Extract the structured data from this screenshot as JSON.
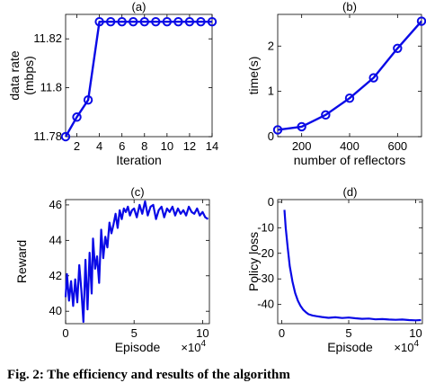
{
  "caption": "Fig. 2: The efficiency and results of the algorithm",
  "colors": {
    "line": "#0a0ae6",
    "axis": "#000000",
    "grid": "#d0d0d0"
  },
  "chart_data": [
    {
      "type": "line",
      "title": "(a)",
      "xlabel": "Iteration",
      "ylabel": "data rate\n(mbps)",
      "xlim": [
        1,
        14
      ],
      "ylim": [
        11.78,
        11.83
      ],
      "xticks": [
        2,
        4,
        6,
        8,
        10,
        12,
        14
      ],
      "yticks": [
        11.78,
        11.8,
        11.82
      ],
      "ytick_labels": [
        "11.78",
        "11.8",
        "11.82"
      ],
      "markers": true,
      "grid": false,
      "x": [
        1,
        2,
        3,
        4,
        5,
        6,
        7,
        8,
        9,
        10,
        11,
        12,
        13,
        14
      ],
      "series": [
        {
          "values": [
            11.78,
            11.788,
            11.795,
            11.827,
            11.827,
            11.827,
            11.827,
            11.827,
            11.827,
            11.827,
            11.827,
            11.827,
            11.827,
            11.827
          ]
        }
      ]
    },
    {
      "type": "line",
      "title": "(b)",
      "xlabel": "number of reflectors",
      "ylabel": "time(s)",
      "xlim": [
        100,
        700
      ],
      "ylim": [
        0,
        2.7
      ],
      "xticks": [
        200,
        400,
        600
      ],
      "yticks": [
        0,
        1,
        2
      ],
      "markers": true,
      "grid": false,
      "x": [
        100,
        200,
        300,
        400,
        500,
        600,
        700
      ],
      "series": [
        {
          "values": [
            0.15,
            0.22,
            0.48,
            0.85,
            1.3,
            1.95,
            2.55
          ]
        }
      ]
    },
    {
      "type": "line",
      "title": "(c)",
      "xlabel": "Episode",
      "x_exponent": "×10^4",
      "ylabel": "Reward",
      "xlim": [
        0,
        10.5
      ],
      "ylim": [
        39.3,
        46.3
      ],
      "xticks": [
        0,
        5,
        10
      ],
      "yticks": [
        40,
        42,
        44,
        46
      ],
      "markers": false,
      "grid": false,
      "x": [
        0,
        0.1,
        0.25,
        0.4,
        0.55,
        0.7,
        0.85,
        1.0,
        1.15,
        1.3,
        1.45,
        1.6,
        1.75,
        1.9,
        2.0,
        2.15,
        2.3,
        2.45,
        2.6,
        2.75,
        2.9,
        3.05,
        3.2,
        3.35,
        3.5,
        3.65,
        3.8,
        3.95,
        4.1,
        4.25,
        4.4,
        4.55,
        4.7,
        4.85,
        5.0,
        5.2,
        5.4,
        5.6,
        5.8,
        6.0,
        6.2,
        6.4,
        6.6,
        6.8,
        7.0,
        7.2,
        7.4,
        7.6,
        7.8,
        8.0,
        8.2,
        8.4,
        8.6,
        8.8,
        9.0,
        9.2,
        9.4,
        9.6,
        9.8,
        10.0,
        10.2,
        10.4
      ],
      "series": [
        {
          "values": [
            40.8,
            42.1,
            40.6,
            41.7,
            40.3,
            41.8,
            40.5,
            42.6,
            41.2,
            39.4,
            42.9,
            40.1,
            43.3,
            41.0,
            44.1,
            42.4,
            43.1,
            41.6,
            44.6,
            43.0,
            44.2,
            43.6,
            45.0,
            44.4,
            44.9,
            45.5,
            44.7,
            45.7,
            45.2,
            45.8,
            45.6,
            45.9,
            45.4,
            45.7,
            45.8,
            45.3,
            46.0,
            45.5,
            46.2,
            45.4,
            45.9,
            46.0,
            45.2,
            45.7,
            45.9,
            45.3,
            45.8,
            45.6,
            45.9,
            45.4,
            45.8,
            45.5,
            45.7,
            45.4,
            45.9,
            45.6,
            45.5,
            45.8,
            45.4,
            45.6,
            45.3,
            45.2
          ]
        }
      ]
    },
    {
      "type": "line",
      "title": "(d)",
      "xlabel": "Episode",
      "x_exponent": "×10^4",
      "ylabel": "Policy loss",
      "xlim": [
        -0.3,
        10.5
      ],
      "ylim": [
        -47.5,
        1
      ],
      "xticks": [
        0,
        5,
        10
      ],
      "yticks": [
        0,
        -10,
        -20,
        -30,
        -40
      ],
      "markers": false,
      "grid": false,
      "x": [
        0.2,
        0.3,
        0.45,
        0.6,
        0.8,
        1.0,
        1.2,
        1.4,
        1.6,
        1.8,
        2.0,
        2.3,
        2.6,
        3.0,
        3.5,
        4.0,
        4.5,
        5.0,
        5.5,
        6.0,
        6.5,
        7.0,
        7.5,
        8.0,
        8.5,
        9.0,
        9.5,
        10.0,
        10.4
      ],
      "series": [
        {
          "values": [
            -3,
            -10,
            -18,
            -25,
            -31,
            -35.5,
            -38.5,
            -40.5,
            -42,
            -43,
            -43.8,
            -44.3,
            -44.6,
            -44.9,
            -45.2,
            -45.0,
            -45.3,
            -45.1,
            -45.4,
            -45.6,
            -45.5,
            -45.8,
            -45.7,
            -45.9,
            -46.0,
            -45.9,
            -46.1,
            -46.2,
            -46.1
          ]
        }
      ]
    }
  ]
}
